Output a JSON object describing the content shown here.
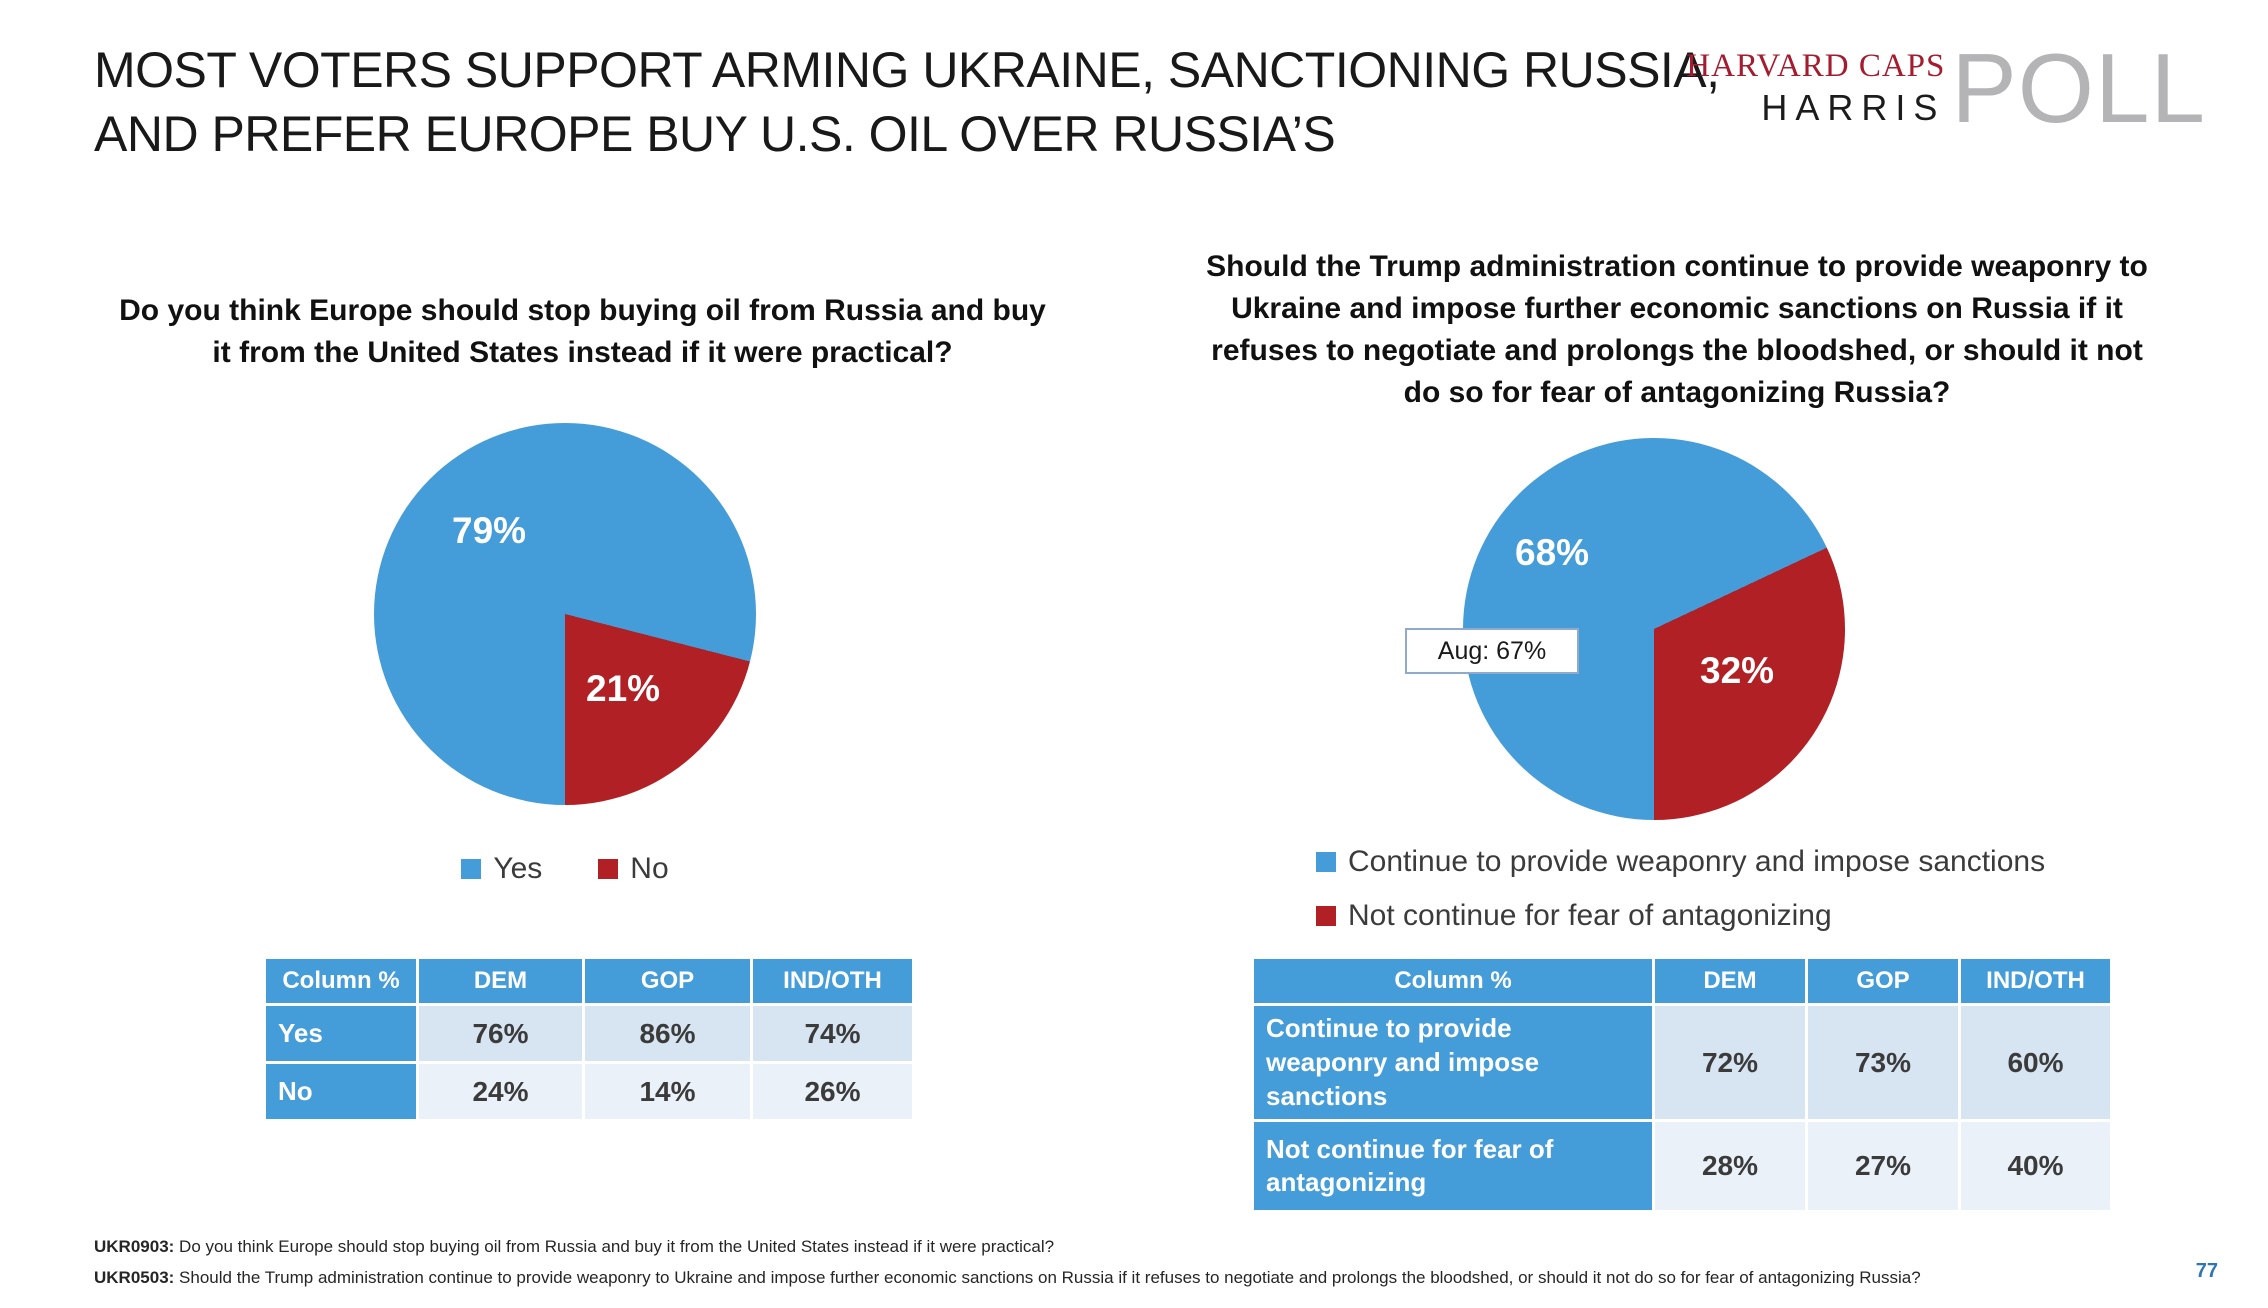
{
  "slide": {
    "title_line1": "MOST VOTERS SUPPORT ARMING UKRAINE, SANCTIONING RUSSIA,",
    "title_line2": "AND PREFER EUROPE BUY U.S. OIL OVER RUSSIA’S",
    "page_number": "77"
  },
  "logo": {
    "line1": "HARVARD CAPS",
    "line2": "HARRIS",
    "poll": "POLL"
  },
  "colors": {
    "blue": "#449CD8",
    "red": "#B12025",
    "maroon": "#A51C30",
    "poll_gray": "#B4B4B7",
    "page_number_blue": "#2E75B6"
  },
  "chart_data": [
    {
      "type": "pie",
      "title": "Do you think Europe should stop buying oil from Russia and buy it from the United States instead if it were practical?",
      "labels": [
        "Yes",
        "No"
      ],
      "values": [
        79,
        21
      ],
      "data_labels": [
        "79%",
        "21%"
      ],
      "colors": [
        "#449CD8",
        "#B12025"
      ],
      "start_angle": 180,
      "legend_position": "bottom"
    },
    {
      "type": "pie",
      "title": "Should the Trump administration continue to provide weaponry to Ukraine and impose further economic sanctions on Russia if it refuses to negotiate and prolongs the bloodshed, or should it not do so for fear of antagonizing Russia?",
      "labels": [
        "Continue to provide weaponry and impose sanctions",
        "Not continue for fear of antagonizing"
      ],
      "values": [
        68,
        32
      ],
      "data_labels": [
        "68%",
        "32%"
      ],
      "annotation": "Aug: 67%",
      "colors": [
        "#449CD8",
        "#B12025"
      ],
      "start_angle": 180,
      "legend_position": "bottom"
    }
  ],
  "left": {
    "question": "Do you think Europe should stop buying oil from Russia and buy it from the United States instead if it were practical?",
    "legend": [
      {
        "label": "Yes",
        "color": "#449CD8"
      },
      {
        "label": "No",
        "color": "#B12025"
      }
    ],
    "table": {
      "headers": [
        "Column %",
        "DEM",
        "GOP",
        "IND/OTH"
      ],
      "rows": [
        {
          "label": "Yes",
          "values": [
            "76%",
            "86%",
            "74%"
          ]
        },
        {
          "label": "No",
          "values": [
            "24%",
            "14%",
            "26%"
          ]
        }
      ]
    }
  },
  "right": {
    "question": "Should the Trump administration continue to provide weaponry to Ukraine and impose further economic sanctions on Russia if it refuses to negotiate and prolongs the bloodshed, or should it not do so for fear of antagonizing Russia?",
    "annotation": "Aug: 67%",
    "legend": [
      {
        "label": "Continue to provide weaponry and impose sanctions",
        "color": "#449CD8"
      },
      {
        "label": "Not continue for fear of antagonizing",
        "color": "#B12025"
      }
    ],
    "table": {
      "headers": [
        "Column %",
        "DEM",
        "GOP",
        "IND/OTH"
      ],
      "rows": [
        {
          "label": "Continue to provide weaponry and impose sanctions",
          "values": [
            "72%",
            "73%",
            "60%"
          ]
        },
        {
          "label": "Not continue for fear of antagonizing",
          "values": [
            "28%",
            "27%",
            "40%"
          ]
        }
      ]
    }
  },
  "footnotes": [
    {
      "code": "UKR0903:",
      "text": "Do you think Europe should stop buying oil from Russia and buy it from the United States instead if it were practical?"
    },
    {
      "code": "UKR0503:",
      "text": "Should the Trump administration continue to provide weaponry to Ukraine and impose further economic sanctions on Russia if it refuses to negotiate and prolongs the bloodshed, or should it not do so for fear of antagonizing Russia?"
    }
  ]
}
